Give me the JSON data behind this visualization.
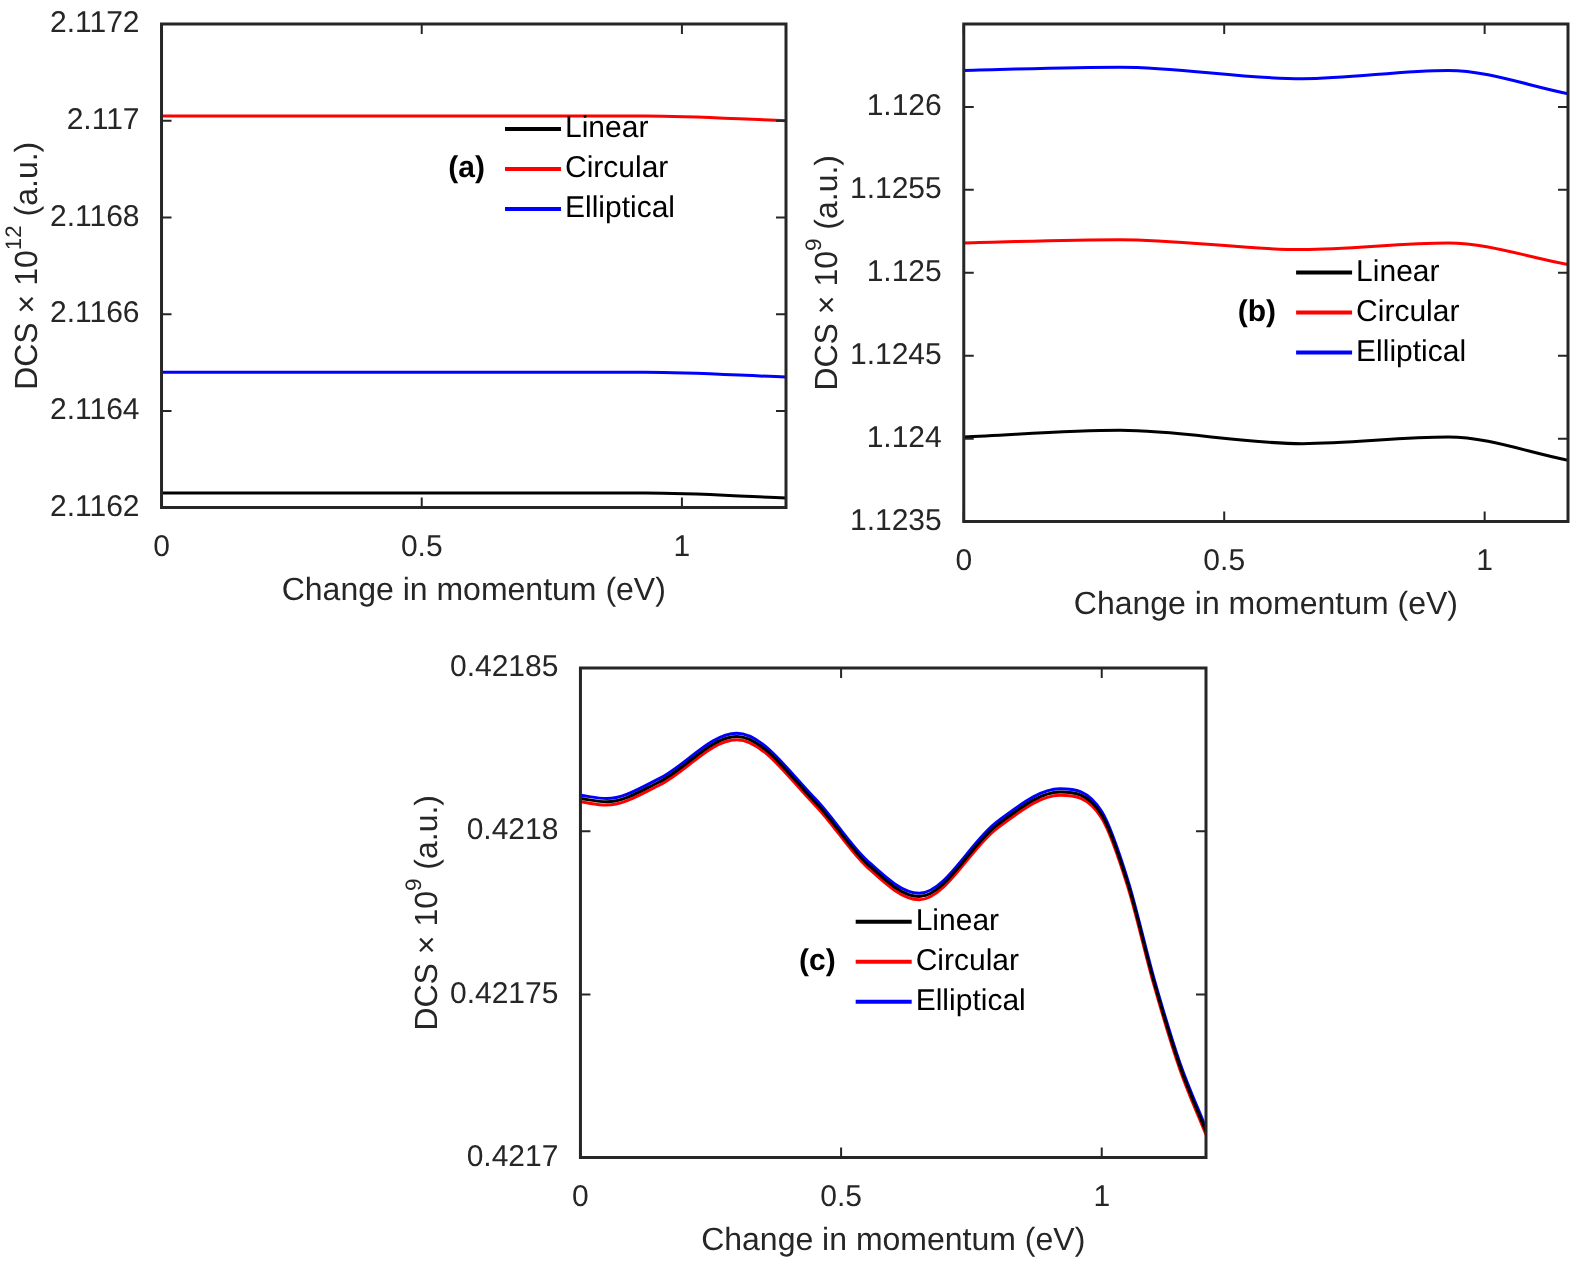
{
  "chart_data": [
    {
      "type": "line",
      "xlabel": "Change in momentum (eV)",
      "ylabel": "DCS × 10$^{12}$ (a.u.)",
      "annotations": [
        "(a)"
      ],
      "legend": "top right",
      "grid": false,
      "x": [
        0,
        0.3,
        0.65,
        0.93,
        1.2
      ],
      "xlim": [
        0,
        1.2
      ],
      "xticks": [
        0,
        0.5,
        1
      ],
      "ylim": [
        2.1162,
        2.1172
      ],
      "yticks": [
        2.1162,
        2.1164,
        2.1166,
        2.1168,
        2.117,
        2.1172
      ],
      "series": [
        {
          "name": "Linear",
          "color": "#000000",
          "values": [
            2.11623,
            2.11623,
            2.11623,
            2.11623,
            2.11622
          ]
        },
        {
          "name": "Circular",
          "color": "#ff0000",
          "values": [
            2.11701,
            2.11701,
            2.11701,
            2.11701,
            2.117
          ]
        },
        {
          "name": "Elliptical",
          "color": "#0000ff",
          "values": [
            2.11648,
            2.11648,
            2.11648,
            2.11648,
            2.11647
          ]
        }
      ]
    },
    {
      "type": "line",
      "xlabel": "Change in momentum (eV)",
      "ylabel": "DCS × 10$^{9}$ (a.u.)",
      "annotations": [
        "(b)"
      ],
      "legend": "center right",
      "grid": false,
      "x": [
        0,
        0.3,
        0.65,
        0.93,
        1.16
      ],
      "xlim": [
        0,
        1.16
      ],
      "xticks": [
        0,
        0.5,
        1
      ],
      "ylim": [
        1.1235,
        1.1265
      ],
      "yticks": [
        1.1235,
        1.124,
        1.1245,
        1.125,
        1.1255,
        1.126
      ],
      "series": [
        {
          "name": "Linear",
          "color": "#000000",
          "values": [
            1.12401,
            1.12405,
            1.12397,
            1.12401,
            1.12387
          ]
        },
        {
          "name": "Circular",
          "color": "#ff0000",
          "values": [
            1.12518,
            1.1252,
            1.12514,
            1.12518,
            1.12505
          ]
        },
        {
          "name": "Elliptical",
          "color": "#0000ff",
          "values": [
            1.12622,
            1.12624,
            1.12617,
            1.12622,
            1.12608
          ]
        }
      ]
    },
    {
      "type": "line",
      "xlabel": "Change in momentum (eV)",
      "ylabel": "DCS × 10$^{9}$ (a.u.)",
      "annotations": [
        "(c)"
      ],
      "legend": "center",
      "grid": false,
      "x": [
        0,
        0.05,
        0.15,
        0.3,
        0.45,
        0.55,
        0.65,
        0.8,
        0.92,
        1.0,
        1.05,
        1.1,
        1.15,
        1.2
      ],
      "xlim": [
        0,
        1.2
      ],
      "xticks": [
        0,
        0.5,
        1
      ],
      "ylim": [
        0.4217,
        0.42185
      ],
      "yticks": [
        0.4217,
        0.42175,
        0.4218,
        0.42185
      ],
      "series": [
        {
          "name": "Linear",
          "color": "#000000",
          "values": [
            0.42181,
            0.421809,
            0.421815,
            0.421829,
            0.421809,
            0.42179,
            0.42178,
            0.421802,
            0.421812,
            0.421805,
            0.421784,
            0.421754,
            0.421728,
            0.421708
          ]
        },
        {
          "name": "Circular",
          "color": "#ff0000",
          "values": [
            0.421809,
            0.421808,
            0.421814,
            0.421828,
            0.421808,
            0.421789,
            0.421779,
            0.421801,
            0.421811,
            0.421804,
            0.421783,
            0.421753,
            0.421727,
            0.421707
          ]
        },
        {
          "name": "Elliptical",
          "color": "#0000ff",
          "values": [
            0.421811,
            0.42181,
            0.421816,
            0.42183,
            0.42181,
            0.421791,
            0.421781,
            0.421803,
            0.421813,
            0.421806,
            0.421785,
            0.421755,
            0.421729,
            0.421709
          ]
        }
      ]
    }
  ]
}
